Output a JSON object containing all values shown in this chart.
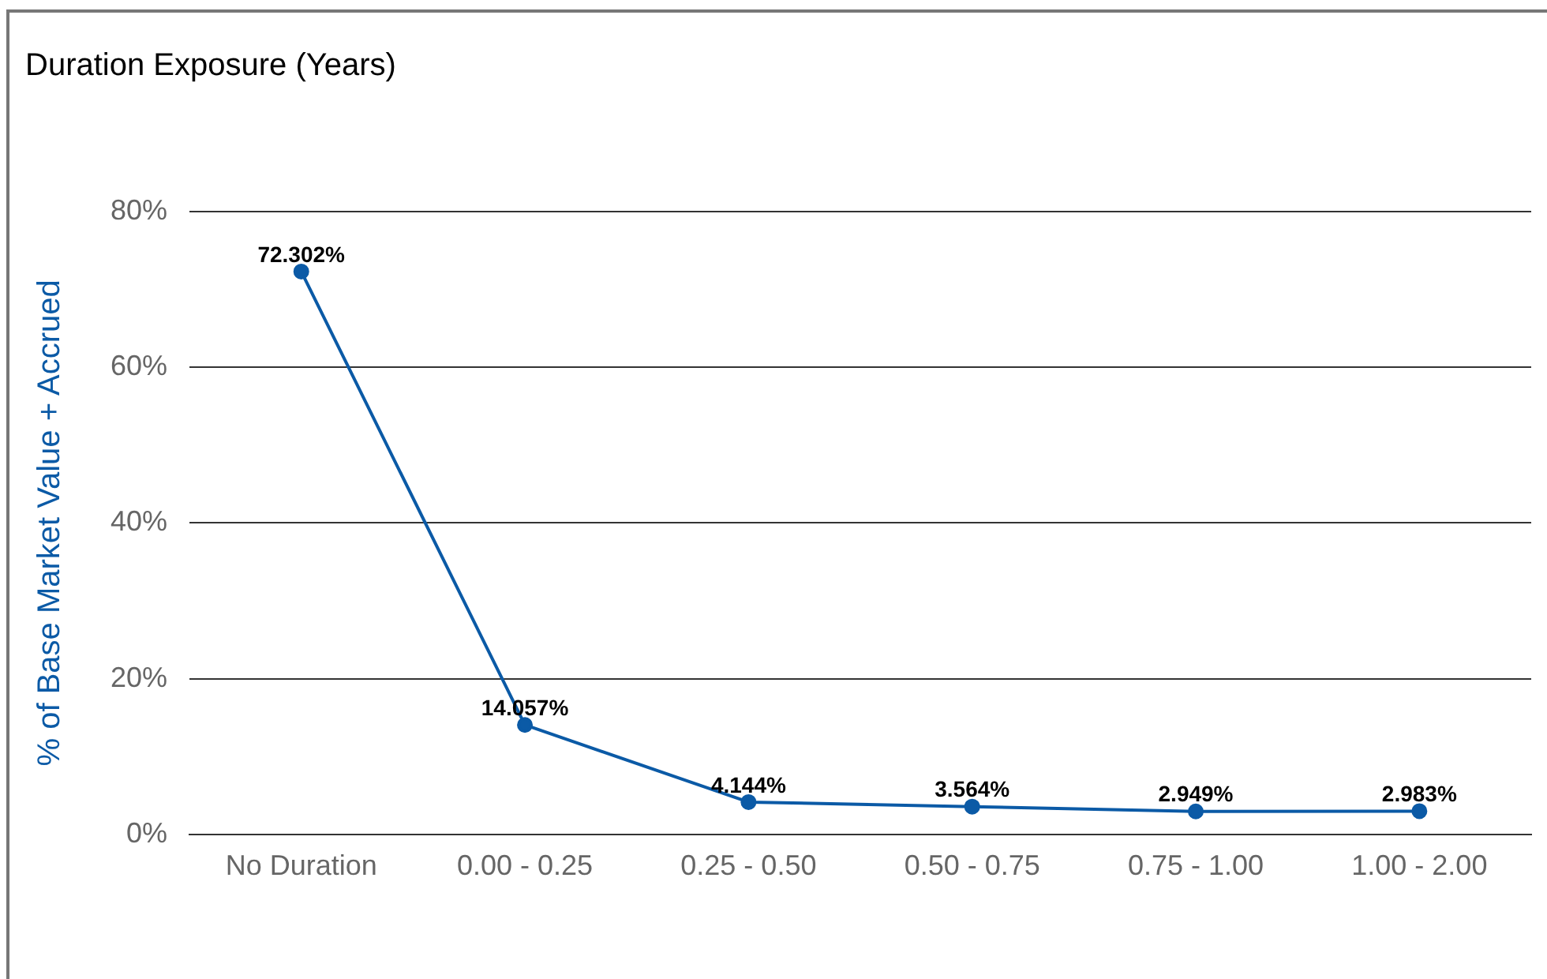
{
  "chart_data": {
    "type": "line",
    "title": "Duration Exposure (Years)",
    "ylabel": "% of Base Market Value + Accrued",
    "categories": [
      "No Duration",
      "0.00 - 0.25",
      "0.25 - 0.50",
      "0.50 - 0.75",
      "0.75 - 1.00",
      "1.00 - 2.00"
    ],
    "series": [
      {
        "color": "#0b5aa6",
        "values": [
          72.302,
          14.057,
          4.144,
          3.564,
          2.949,
          2.983
        ],
        "value_labels": [
          "72.302%",
          "14.057%",
          "4.144%",
          "3.564%",
          "2.949%",
          "2.983%"
        ]
      }
    ],
    "ylim": [
      0,
      80
    ],
    "yticks": [
      {
        "value": 0,
        "label": "0%"
      },
      {
        "value": 20,
        "label": "20%"
      },
      {
        "value": 40,
        "label": "40%"
      },
      {
        "value": 60,
        "label": "60%"
      },
      {
        "value": 80,
        "label": "80%"
      }
    ],
    "grid": "y",
    "legend": false,
    "marker": "circle",
    "line_style": "solid"
  }
}
